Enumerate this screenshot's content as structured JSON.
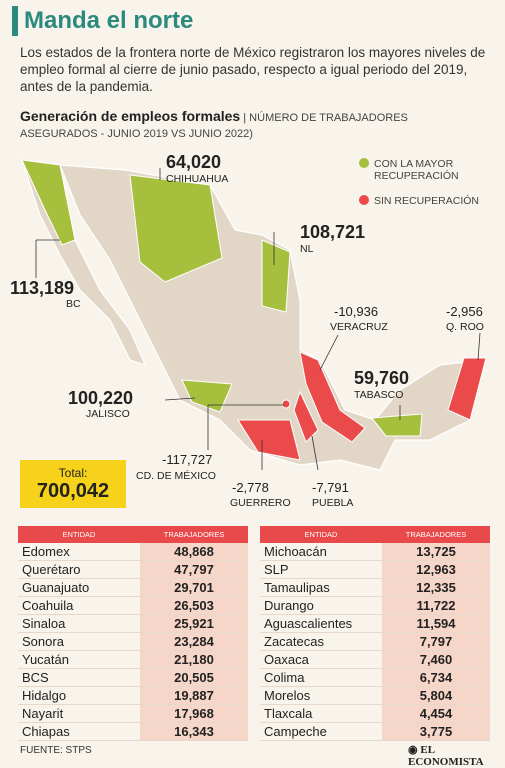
{
  "header": {
    "title": "Manda el norte",
    "intro": "Los estados de la frontera norte de México registraron los mayores niveles de empleo formal al cierre de junio pasado, respecto a igual periodo del 2019, antes de la pandemia.",
    "subtitle": "Generación de empleos formales",
    "subtitle_note": "| NÚMERO DE TRABAJADORES ASEGURADOS - JUNIO 2019 VS JUNIO 2022)"
  },
  "legend": [
    "CON LA MAYOR RECUPERACIÓN",
    "SIN RECUPERACIÓN"
  ],
  "callouts": [
    {
      "value": "64,020",
      "label": "CHIHUAHUA"
    },
    {
      "value": "108,721",
      "label": "NL"
    },
    {
      "value": "113,189",
      "label": "BC"
    },
    {
      "value": "-10,936",
      "label": "VERACRUZ"
    },
    {
      "value": "-2,956",
      "label": "Q. ROO"
    },
    {
      "value": "59,760",
      "label": "TABASCO"
    },
    {
      "value": "100,220",
      "label": "JALISCO"
    },
    {
      "value": "-117,727",
      "label": "CD. DE MÉXICO"
    },
    {
      "value": "-2,778",
      "label": "GUERRERO"
    },
    {
      "value": "-7,791",
      "label": "PUEBLA"
    }
  ],
  "total": {
    "label": "Total:",
    "value": "700,042"
  },
  "tables": [
    {
      "columns": [
        "ENTIDAD",
        "TRABAJADORES"
      ],
      "rows": [
        [
          "Edomex",
          "48,868"
        ],
        [
          "Querétaro",
          "47,797"
        ],
        [
          "Guanajuato",
          "29,701"
        ],
        [
          "Coahuila",
          "26,503"
        ],
        [
          "Sinaloa",
          "25,921"
        ],
        [
          "Sonora",
          "23,284"
        ],
        [
          "Yucatán",
          "21,180"
        ],
        [
          "BCS",
          "20,505"
        ],
        [
          "Hidalgo",
          "19,887"
        ],
        [
          "Nayarit",
          "17,968"
        ],
        [
          "Chiapas",
          "16,343"
        ]
      ]
    },
    {
      "columns": [
        "ENTIDAD",
        "TRABAJADORES"
      ],
      "rows": [
        [
          "Michoacán",
          "13,725"
        ],
        [
          "SLP",
          "12,963"
        ],
        [
          "Tamaulipas",
          "12,335"
        ],
        [
          "Durango",
          "11,722"
        ],
        [
          "Aguascalientes",
          "11,594"
        ],
        [
          "Zacatecas",
          "7,797"
        ],
        [
          "Oaxaca",
          "7,460"
        ],
        [
          "Colima",
          "6,734"
        ],
        [
          "Morelos",
          "5,804"
        ],
        [
          "Tlaxcala",
          "4,454"
        ],
        [
          "Campeche",
          "3,775"
        ]
      ]
    }
  ],
  "footer": {
    "source": "FUENTE: STPS",
    "brand": "EL ECONOMISTA"
  }
}
